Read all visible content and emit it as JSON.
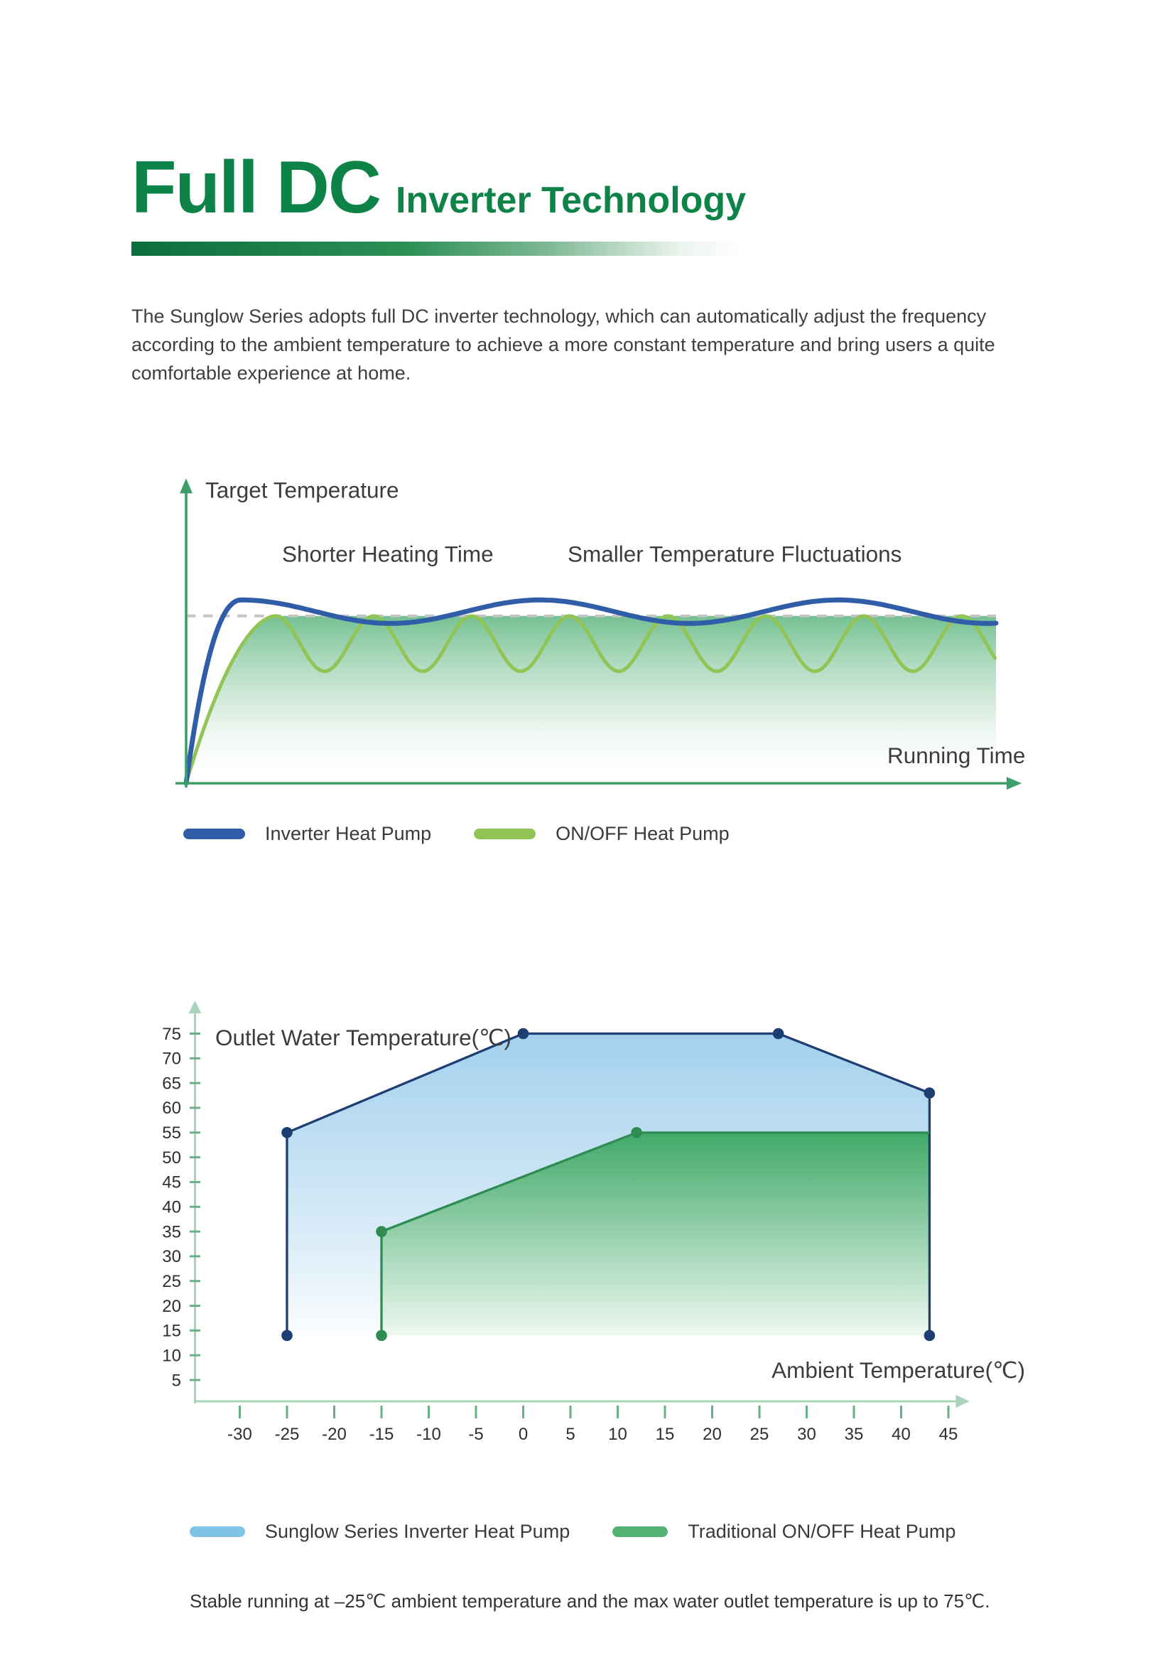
{
  "header": {
    "title_main": "Full DC",
    "title_sub": "Inverter Technology",
    "accent_color": "#0e8347"
  },
  "intro": {
    "text": "The Sunglow Series adopts full DC inverter technology, which can automatically adjust the frequency according to the ambient temperature to achieve a more constant temperature and bring users a quite comfortable experience at home."
  },
  "chart_data": [
    {
      "type": "line",
      "title": "Inverter vs ON/OFF heat pump temperature behaviour over running time",
      "ylabel": "Target Temperature",
      "xlabel": "Running Time",
      "annotations": [
        "Shorter Heating Time",
        "Smaller Temperature Fluctuations"
      ],
      "target_line": {
        "style": "dashed",
        "color": "#c4c4c4",
        "meaning": "target temperature level"
      },
      "axis_color": "#3e9e6a",
      "fill": {
        "top_color": "#6dbe8c",
        "bottom_color": "#ffffff"
      },
      "geometry": {
        "origin_x": 28,
        "origin_y": 300,
        "target_y": 143,
        "end_x": 788
      },
      "series": [
        {
          "name": "Inverter Heat Pump",
          "color": "#2f5da8",
          "behavior": "fast rise with small overshoot, then small damped oscillation slightly above the target line",
          "rise_end_x": 80,
          "overshoot_y": 128,
          "period": 280,
          "amplitude": 11,
          "offset_above": 4
        },
        {
          "name": "ON/OFF Heat Pump",
          "color": "#92c355",
          "behavior": "slower rise, then large repeated fluctuations dipping well below the target line",
          "rise_end_x": 112,
          "period": 92,
          "amplitude": 26
        }
      ]
    },
    {
      "type": "area",
      "title": "Outlet water temperature envelope vs ambient temperature",
      "ylabel": "Outlet Water Temperature(℃)",
      "xlabel": "Ambient Temperature(℃)",
      "xlim": [
        -30,
        45
      ],
      "ylim": [
        5,
        75
      ],
      "x_ticks": [
        -30,
        -25,
        -20,
        -15,
        -10,
        -5,
        0,
        5,
        10,
        15,
        20,
        25,
        30,
        35,
        40,
        45
      ],
      "y_ticks": [
        5,
        10,
        15,
        20,
        25,
        30,
        35,
        40,
        45,
        50,
        55,
        60,
        65,
        70,
        75
      ],
      "axis_color": "#abd3bb",
      "tick_color": "#66b286",
      "series": [
        {
          "name": "Sunglow Series Inverter Heat Pump",
          "stroke": "#1d3e73",
          "fill_top": "#a3d0ed",
          "fill_mid": "#dcedf8",
          "fill_bottom": "#fbfdff",
          "legend_color": "#7fc4e6",
          "outline": [
            [
              -25,
              14
            ],
            [
              -25,
              55
            ],
            [
              0,
              75
            ],
            [
              27,
              75
            ],
            [
              43,
              63
            ],
            [
              43,
              14
            ]
          ],
          "fill_outline": [
            [
              -25,
              14
            ],
            [
              -25,
              55
            ],
            [
              0,
              75
            ],
            [
              27,
              75
            ],
            [
              43,
              63
            ],
            [
              43,
              14
            ]
          ],
          "dots": [
            [
              -25,
              55
            ],
            [
              0,
              75
            ],
            [
              27,
              75
            ],
            [
              43,
              63
            ],
            [
              -25,
              14
            ],
            [
              43,
              14
            ]
          ]
        },
        {
          "name": "Traditional ON/OFF Heat Pump",
          "stroke": "#2f8c52",
          "fill_top": "#41a968",
          "fill_mid": "#c2e4cf",
          "fill_bottom": "#eef8f1",
          "legend_color": "#52b173",
          "outline": [
            [
              -15,
              14
            ],
            [
              -15,
              35
            ],
            [
              12,
              55
            ],
            [
              43,
              55
            ]
          ],
          "fill_outline": [
            [
              -15,
              14
            ],
            [
              -15,
              35
            ],
            [
              12,
              55
            ],
            [
              43,
              55
            ],
            [
              43,
              14
            ]
          ],
          "dots": [
            [
              -15,
              35
            ],
            [
              12,
              55
            ],
            [
              -15,
              14
            ]
          ]
        }
      ],
      "caption": "Stable running at –25℃ ambient temperature and the max water outlet temperature is up to 75℃."
    }
  ]
}
